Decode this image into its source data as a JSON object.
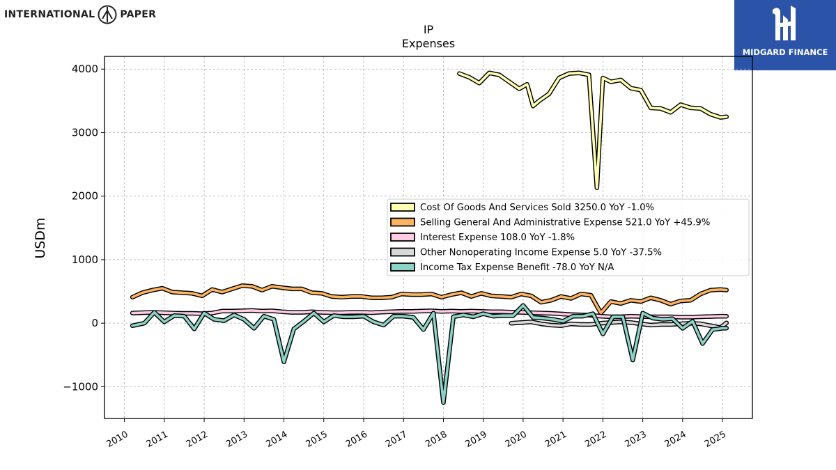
{
  "branding": {
    "left_logo_text_1": "INTERNATIONAL",
    "left_logo_text_2": "PAPER",
    "right_logo_text": "MIDGARD FINANCE"
  },
  "colors": {
    "cogs": "#ffffb3",
    "sga": "#fdb462",
    "interest": "#fccde5",
    "other": "#d9d9d9",
    "tax": "#8dd3c7",
    "brand_blue": "#2b54a8"
  },
  "chart_data": {
    "type": "line",
    "title": "IP",
    "subtitle": "Expenses",
    "xlabel": "",
    "ylabel": "USDm",
    "ylim": [
      -1500,
      4200
    ],
    "xlim": [
      2009.5,
      2025.75
    ],
    "yticks": [
      -1000,
      0,
      1000,
      2000,
      3000,
      4000
    ],
    "xticks": [
      2010,
      2011,
      2012,
      2013,
      2014,
      2015,
      2016,
      2017,
      2018,
      2019,
      2020,
      2021,
      2022,
      2023,
      2024,
      2025
    ],
    "grid": true,
    "legend_position": "center-right",
    "series": [
      {
        "name": "Cost Of Goods And Services Sold",
        "legend": "Cost Of Goods And Services Sold  3250.0 YoY -1.0%",
        "color_key": "cogs",
        "x": [
          2018.4,
          2018.65,
          2018.9,
          2019.15,
          2019.4,
          2019.65,
          2019.9,
          2020.1,
          2020.25,
          2020.4,
          2020.65,
          2020.9,
          2021.15,
          2021.4,
          2021.65,
          2021.85,
          2022.0,
          2022.2,
          2022.45,
          2022.7,
          2022.95,
          2023.2,
          2023.45,
          2023.7,
          2023.95,
          2024.2,
          2024.45,
          2024.7,
          2024.95,
          2025.1
        ],
        "y": [
          3930,
          3870,
          3780,
          3940,
          3910,
          3800,
          3690,
          3760,
          3420,
          3500,
          3610,
          3860,
          3930,
          3940,
          3910,
          2130,
          3860,
          3800,
          3830,
          3700,
          3670,
          3390,
          3380,
          3320,
          3440,
          3390,
          3380,
          3290,
          3240,
          3250
        ]
      },
      {
        "name": "Selling General And Administrative Expense",
        "legend": "Selling General And Administrative Expense  521.0 YoY +45.9%",
        "color_key": "sga",
        "x": [
          2010.2,
          2010.45,
          2010.7,
          2010.95,
          2011.2,
          2011.45,
          2011.7,
          2011.95,
          2012.2,
          2012.45,
          2012.7,
          2012.95,
          2013.2,
          2013.45,
          2013.7,
          2013.95,
          2014.2,
          2014.45,
          2014.7,
          2014.95,
          2015.2,
          2015.45,
          2015.7,
          2015.95,
          2016.2,
          2016.45,
          2016.7,
          2016.95,
          2017.2,
          2017.45,
          2017.7,
          2017.95,
          2018.2,
          2018.45,
          2018.7,
          2018.95,
          2019.2,
          2019.45,
          2019.7,
          2019.95,
          2020.2,
          2020.45,
          2020.7,
          2020.95,
          2021.2,
          2021.45,
          2021.7,
          2021.95,
          2022.2,
          2022.45,
          2022.7,
          2022.95,
          2023.2,
          2023.45,
          2023.7,
          2023.95,
          2024.2,
          2024.45,
          2024.7,
          2024.95,
          2025.1
        ],
        "y": [
          410,
          480,
          520,
          550,
          490,
          480,
          470,
          430,
          530,
          490,
          540,
          590,
          580,
          520,
          580,
          560,
          540,
          540,
          480,
          470,
          420,
          410,
          420,
          420,
          400,
          400,
          410,
          460,
          450,
          450,
          460,
          410,
          450,
          480,
          420,
          470,
          430,
          420,
          410,
          460,
          430,
          330,
          360,
          420,
          390,
          460,
          440,
          160,
          340,
          310,
          360,
          340,
          400,
          360,
          300,
          350,
          360,
          460,
          520,
          530,
          521
        ]
      },
      {
        "name": "Interest Expense",
        "legend": "Interest Expense  108.0 YoY -1.8%",
        "color_key": "interest",
        "x": [
          2010.2,
          2010.45,
          2010.7,
          2010.95,
          2011.2,
          2011.45,
          2011.7,
          2011.95,
          2012.2,
          2012.45,
          2012.7,
          2012.95,
          2013.2,
          2013.45,
          2013.7,
          2013.95,
          2014.2,
          2014.45,
          2014.7,
          2014.95,
          2015.2,
          2015.45,
          2015.7,
          2015.95,
          2016.2,
          2016.45,
          2016.7,
          2016.95,
          2017.2,
          2017.45,
          2017.7,
          2017.95,
          2018.2,
          2018.45,
          2018.7,
          2018.95,
          2019.2,
          2019.45,
          2019.7,
          2019.95,
          2020.2,
          2020.45,
          2020.7,
          2020.95,
          2021.2,
          2021.45,
          2021.7,
          2021.95,
          2022.2,
          2022.45,
          2022.7,
          2022.95,
          2023.2,
          2023.45,
          2023.7,
          2023.95,
          2024.2,
          2024.45,
          2024.7,
          2024.95,
          2025.1
        ],
        "y": [
          160,
          165,
          170,
          165,
          160,
          155,
          155,
          150,
          160,
          190,
          190,
          195,
          200,
          190,
          195,
          180,
          170,
          170,
          180,
          170,
          165,
          165,
          170,
          170,
          165,
          175,
          180,
          185,
          185,
          190,
          195,
          185,
          190,
          185,
          190,
          185,
          180,
          180,
          175,
          170,
          165,
          160,
          155,
          145,
          135,
          130,
          125,
          110,
          100,
          100,
          110,
          105,
          100,
          100,
          100,
          95,
          95,
          100,
          105,
          110,
          108
        ]
      },
      {
        "name": "Other Nonoperating Income Expense",
        "legend": "Other Nonoperating Income Expense  5.0 YoY -37.5%",
        "color_key": "other",
        "x": [
          2019.7,
          2019.95,
          2020.2,
          2020.45,
          2020.7,
          2020.95,
          2021.2,
          2021.45,
          2021.7,
          2021.95,
          2022.2,
          2022.45,
          2022.7,
          2022.95,
          2023.2,
          2023.45,
          2023.7,
          2023.95,
          2024.2,
          2024.45,
          2024.7,
          2024.95,
          2025.1
        ],
        "y": [
          0,
          10,
          20,
          -10,
          -30,
          -40,
          -10,
          -20,
          -20,
          0,
          10,
          20,
          10,
          -10,
          -30,
          -20,
          -20,
          -10,
          0,
          -10,
          -40,
          -70,
          5
        ]
      },
      {
        "name": "Income Tax Expense Benefit",
        "legend": "Income Tax Expense Benefit  -78.0 YoY N/A",
        "color_key": "tax",
        "x": [
          2010.2,
          2010.5,
          2010.75,
          2011.0,
          2011.25,
          2011.5,
          2011.75,
          2012.0,
          2012.25,
          2012.5,
          2012.75,
          2013.0,
          2013.25,
          2013.5,
          2013.75,
          2014.0,
          2014.25,
          2014.5,
          2014.75,
          2015.0,
          2015.25,
          2015.5,
          2015.75,
          2016.0,
          2016.25,
          2016.5,
          2016.75,
          2017.0,
          2017.25,
          2017.5,
          2017.75,
          2018.0,
          2018.25,
          2018.5,
          2018.75,
          2019.0,
          2019.25,
          2019.5,
          2019.75,
          2020.0,
          2020.25,
          2020.5,
          2020.75,
          2021.0,
          2021.25,
          2021.5,
          2021.75,
          2022.0,
          2022.25,
          2022.5,
          2022.75,
          2023.0,
          2023.25,
          2023.5,
          2023.75,
          2024.0,
          2024.25,
          2024.5,
          2024.75,
          2025.0,
          2025.1
        ],
        "y": [
          -40,
          0,
          170,
          20,
          120,
          110,
          -90,
          160,
          60,
          40,
          130,
          60,
          -80,
          110,
          60,
          -610,
          -90,
          30,
          160,
          20,
          120,
          100,
          100,
          110,
          20,
          -30,
          110,
          110,
          90,
          -100,
          160,
          -1250,
          100,
          130,
          100,
          150,
          110,
          120,
          120,
          280,
          90,
          80,
          60,
          30,
          110,
          110,
          150,
          -170,
          100,
          100,
          -580,
          160,
          80,
          60,
          70,
          -80,
          30,
          -320,
          -100,
          -80,
          -78
        ]
      }
    ]
  }
}
